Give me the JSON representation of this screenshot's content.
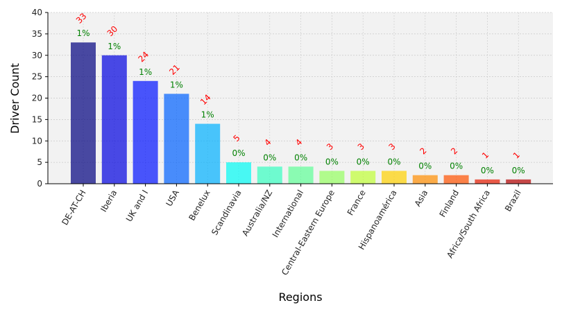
{
  "chart_data": {
    "type": "bar",
    "xlabel": "Regions",
    "ylabel": "Driver Count",
    "ylim": [
      0,
      40
    ],
    "yticks": [
      0,
      5,
      10,
      15,
      20,
      25,
      30,
      35,
      40
    ],
    "grid": true,
    "categories": [
      "DE-AT-CH",
      "Iberia",
      "UK and I",
      "USA",
      "Benelux",
      "Scandinavia",
      "Australia/NZ",
      "International",
      "Central-Eastern Europe",
      "France",
      "Hispanoamérica",
      "Asia",
      "Finland",
      "Africa/South Africa",
      "Brazil"
    ],
    "values": [
      33,
      30,
      24,
      21,
      14,
      5,
      4,
      4,
      3,
      3,
      3,
      2,
      2,
      1,
      1
    ],
    "count_labels": [
      "33",
      "30",
      "24",
      "21",
      "14",
      "5",
      "4",
      "4",
      "3",
      "3",
      "3",
      "2",
      "2",
      "1",
      "1"
    ],
    "percent_labels": [
      "1%",
      "1%",
      "1%",
      "1%",
      "1%",
      "0%",
      "0%",
      "0%",
      "0%",
      "0%",
      "0%",
      "0%",
      "0%",
      "0%",
      "0%"
    ],
    "bar_colors": [
      "#00007f",
      "#0000df",
      "#0011ff",
      "#0061ff",
      "#00b1ff",
      "#00fbf4",
      "#36ffc1",
      "#5eff97",
      "#96ff61",
      "#c1ff36",
      "#ffd100",
      "#ff8d00",
      "#ff5100",
      "#e61900",
      "#b30000"
    ],
    "count_label_color": "#ff0000",
    "percent_label_color": "#008000"
  }
}
